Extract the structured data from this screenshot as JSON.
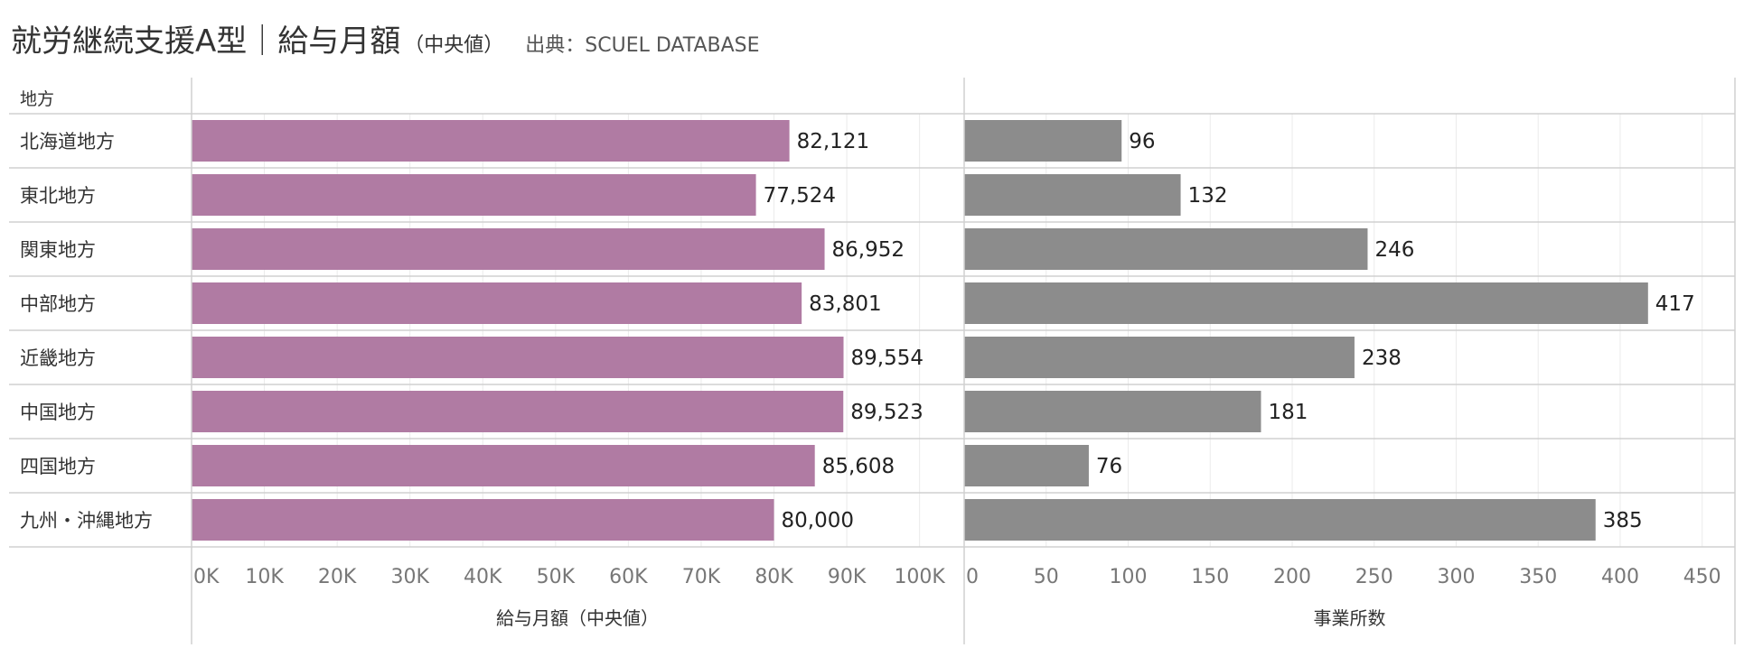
{
  "title": "就労継続支援A型｜給与月額",
  "title_suffix": "（中央値）",
  "source": "出典：SCUEL DATABASE",
  "row_header": "地方",
  "colors": {
    "salary": "#b07ba3",
    "offices": "#8c8c8c",
    "grid": "#ebebeb",
    "border": "#d0d0d0",
    "tick": "#777777"
  },
  "chart_data": [
    {
      "type": "bar",
      "orientation": "horizontal",
      "categories": [
        "北海道地方",
        "東北地方",
        "関東地方",
        "中部地方",
        "近畿地方",
        "中国地方",
        "四国地方",
        "九州・沖縄地方"
      ],
      "values": [
        82121,
        77524,
        86952,
        83801,
        89554,
        89523,
        85608,
        80000
      ],
      "value_labels": [
        "82,121",
        "77,524",
        "86,952",
        "83,801",
        "89,554",
        "89,523",
        "85,608",
        "80,000"
      ],
      "xlabel": "給与月額（中央値）",
      "xlim": [
        0,
        106000
      ],
      "ticks": [
        0,
        10000,
        20000,
        30000,
        40000,
        50000,
        60000,
        70000,
        80000,
        90000,
        100000
      ],
      "tick_labels": [
        "0K",
        "10K",
        "20K",
        "30K",
        "40K",
        "50K",
        "60K",
        "70K",
        "80K",
        "90K",
        "100K"
      ],
      "grid": true
    },
    {
      "type": "bar",
      "orientation": "horizontal",
      "categories": [
        "北海道地方",
        "東北地方",
        "関東地方",
        "中部地方",
        "近畿地方",
        "中国地方",
        "四国地方",
        "九州・沖縄地方"
      ],
      "values": [
        96,
        132,
        246,
        417,
        238,
        181,
        76,
        385
      ],
      "value_labels": [
        "96",
        "132",
        "246",
        "417",
        "238",
        "181",
        "76",
        "385"
      ],
      "xlabel": "事業所数",
      "xlim": [
        0,
        470
      ],
      "ticks": [
        0,
        50,
        100,
        150,
        200,
        250,
        300,
        350,
        400,
        450
      ],
      "tick_labels": [
        "0",
        "50",
        "100",
        "150",
        "200",
        "250",
        "300",
        "350",
        "400",
        "450"
      ],
      "grid": true
    }
  ]
}
